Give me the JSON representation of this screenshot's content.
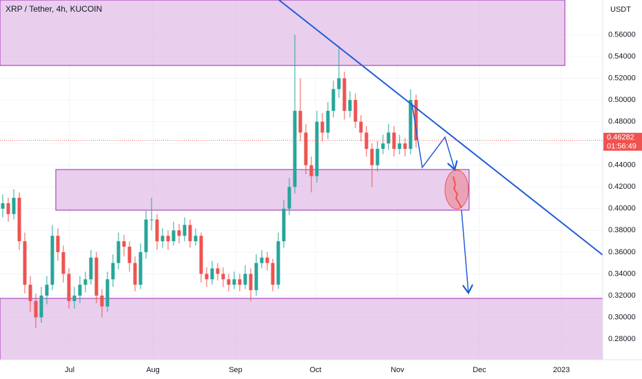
{
  "chart_data": {
    "type": "candlestick",
    "title": "XRP / Tether, 4h, KUCOIN",
    "unit": "USDT",
    "up_color": "#26a69a",
    "down_color": "#ef5350",
    "ylim": [
      0.261,
      0.592
    ],
    "yticks": [
      {
        "value": 0.28,
        "label": "0.28000"
      },
      {
        "value": 0.3,
        "label": "0.30000"
      },
      {
        "value": 0.32,
        "label": "0.32000"
      },
      {
        "value": 0.34,
        "label": "0.34000"
      },
      {
        "value": 0.36,
        "label": "0.36000"
      },
      {
        "value": 0.38,
        "label": "0.38000"
      },
      {
        "value": 0.4,
        "label": "0.40000"
      },
      {
        "value": 0.42,
        "label": "0.42000"
      },
      {
        "value": 0.44,
        "label": "0.44000"
      },
      {
        "value": 0.46,
        "label": "0.46000"
      },
      {
        "value": 0.48,
        "label": "0.48000"
      },
      {
        "value": 0.5,
        "label": "0.50000"
      },
      {
        "value": 0.52,
        "label": "0.52000"
      },
      {
        "value": 0.54,
        "label": "0.54000"
      },
      {
        "value": 0.56,
        "label": "0.56000"
      }
    ],
    "x_labels": [
      "Jul",
      "Aug",
      "Sep",
      "Oct",
      "Nov",
      "Dec",
      "2023"
    ],
    "last_price": 0.46282,
    "countdown": "01:56:49",
    "candles": [
      [
        0.4,
        0.413,
        0.392,
        0.405
      ],
      [
        0.405,
        0.41,
        0.388,
        0.395
      ],
      [
        0.395,
        0.418,
        0.39,
        0.41
      ],
      [
        0.41,
        0.415,
        0.362,
        0.37
      ],
      [
        0.37,
        0.378,
        0.322,
        0.33
      ],
      [
        0.33,
        0.338,
        0.305,
        0.315
      ],
      [
        0.315,
        0.322,
        0.29,
        0.3
      ],
      [
        0.3,
        0.328,
        0.295,
        0.32
      ],
      [
        0.32,
        0.338,
        0.312,
        0.33
      ],
      [
        0.33,
        0.385,
        0.325,
        0.375
      ],
      [
        0.375,
        0.382,
        0.352,
        0.36
      ],
      [
        0.36,
        0.366,
        0.332,
        0.34
      ],
      [
        0.34,
        0.345,
        0.308,
        0.315
      ],
      [
        0.315,
        0.328,
        0.308,
        0.32
      ],
      [
        0.32,
        0.338,
        0.313,
        0.33
      ],
      [
        0.33,
        0.342,
        0.323,
        0.335
      ],
      [
        0.335,
        0.362,
        0.33,
        0.355
      ],
      [
        0.355,
        0.36,
        0.313,
        0.32
      ],
      [
        0.32,
        0.326,
        0.3,
        0.31
      ],
      [
        0.31,
        0.342,
        0.305,
        0.335
      ],
      [
        0.335,
        0.358,
        0.328,
        0.35
      ],
      [
        0.35,
        0.378,
        0.344,
        0.37
      ],
      [
        0.37,
        0.376,
        0.356,
        0.365
      ],
      [
        0.365,
        0.37,
        0.342,
        0.35
      ],
      [
        0.35,
        0.356,
        0.324,
        0.33
      ],
      [
        0.33,
        0.368,
        0.326,
        0.36
      ],
      [
        0.36,
        0.398,
        0.354,
        0.39
      ],
      [
        0.39,
        0.41,
        0.38,
        0.39
      ],
      [
        0.39,
        0.395,
        0.362,
        0.37
      ],
      [
        0.37,
        0.382,
        0.364,
        0.375
      ],
      [
        0.375,
        0.38,
        0.362,
        0.37
      ],
      [
        0.37,
        0.388,
        0.366,
        0.38
      ],
      [
        0.38,
        0.386,
        0.368,
        0.375
      ],
      [
        0.375,
        0.392,
        0.37,
        0.385
      ],
      [
        0.385,
        0.39,
        0.364,
        0.37
      ],
      [
        0.37,
        0.382,
        0.366,
        0.375
      ],
      [
        0.375,
        0.378,
        0.332,
        0.34
      ],
      [
        0.34,
        0.346,
        0.328,
        0.335
      ],
      [
        0.335,
        0.352,
        0.33,
        0.345
      ],
      [
        0.345,
        0.35,
        0.334,
        0.34
      ],
      [
        0.34,
        0.346,
        0.328,
        0.335
      ],
      [
        0.335,
        0.34,
        0.324,
        0.33
      ],
      [
        0.33,
        0.342,
        0.326,
        0.335
      ],
      [
        0.335,
        0.34,
        0.324,
        0.33
      ],
      [
        0.33,
        0.348,
        0.326,
        0.34
      ],
      [
        0.34,
        0.345,
        0.315,
        0.325
      ],
      [
        0.325,
        0.358,
        0.32,
        0.35
      ],
      [
        0.35,
        0.362,
        0.345,
        0.355
      ],
      [
        0.355,
        0.36,
        0.343,
        0.35
      ],
      [
        0.35,
        0.354,
        0.324,
        0.33
      ],
      [
        0.33,
        0.378,
        0.326,
        0.37
      ],
      [
        0.37,
        0.408,
        0.364,
        0.4
      ],
      [
        0.4,
        0.428,
        0.394,
        0.42
      ],
      [
        0.42,
        0.56,
        0.414,
        0.49
      ],
      [
        0.49,
        0.52,
        0.462,
        0.47
      ],
      [
        0.47,
        0.478,
        0.432,
        0.44
      ],
      [
        0.44,
        0.448,
        0.415,
        0.43
      ],
      [
        0.43,
        0.49,
        0.424,
        0.48
      ],
      [
        0.48,
        0.488,
        0.462,
        0.47
      ],
      [
        0.47,
        0.498,
        0.464,
        0.49
      ],
      [
        0.49,
        0.518,
        0.484,
        0.51
      ],
      [
        0.51,
        0.55,
        0.502,
        0.52
      ],
      [
        0.52,
        0.526,
        0.482,
        0.49
      ],
      [
        0.49,
        0.508,
        0.484,
        0.5
      ],
      [
        0.5,
        0.506,
        0.474,
        0.48
      ],
      [
        0.48,
        0.486,
        0.462,
        0.47
      ],
      [
        0.47,
        0.476,
        0.448,
        0.455
      ],
      [
        0.455,
        0.46,
        0.42,
        0.44
      ],
      [
        0.44,
        0.462,
        0.434,
        0.455
      ],
      [
        0.455,
        0.468,
        0.45,
        0.46
      ],
      [
        0.46,
        0.478,
        0.454,
        0.47
      ],
      [
        0.47,
        0.476,
        0.448,
        0.455
      ],
      [
        0.455,
        0.468,
        0.45,
        0.46
      ],
      [
        0.46,
        0.465,
        0.448,
        0.455
      ],
      [
        0.455,
        0.51,
        0.45,
        0.5
      ],
      [
        0.5,
        0.505,
        0.456,
        0.46282
      ]
    ]
  }
}
